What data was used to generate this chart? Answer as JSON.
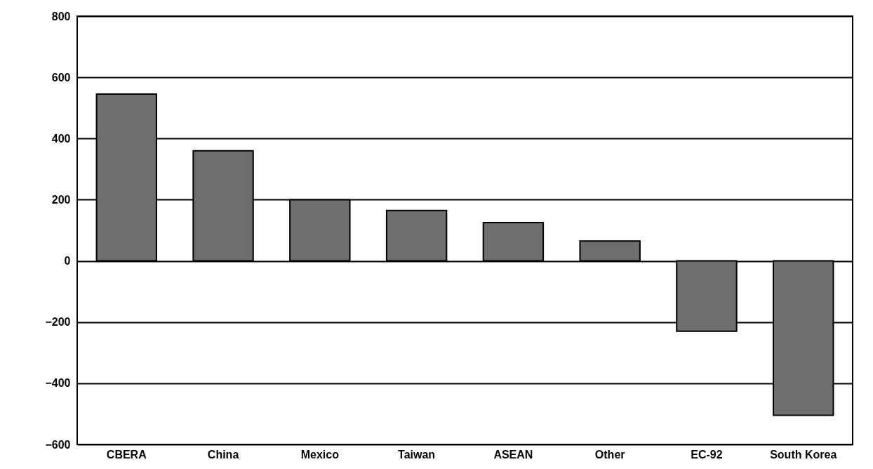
{
  "chart_data": {
    "type": "bar",
    "categories": [
      "CBERA",
      "China",
      "Mexico",
      "Taiwan",
      "ASEAN",
      "Other",
      "EC-92",
      "South Korea"
    ],
    "values": [
      545,
      360,
      200,
      165,
      125,
      65,
      -230,
      -505
    ],
    "color": "#6e6e6e",
    "ylim": [
      -600,
      800
    ],
    "yticks": [
      -600,
      -400,
      -200,
      0,
      200,
      400,
      600,
      800
    ],
    "grid": "y"
  }
}
